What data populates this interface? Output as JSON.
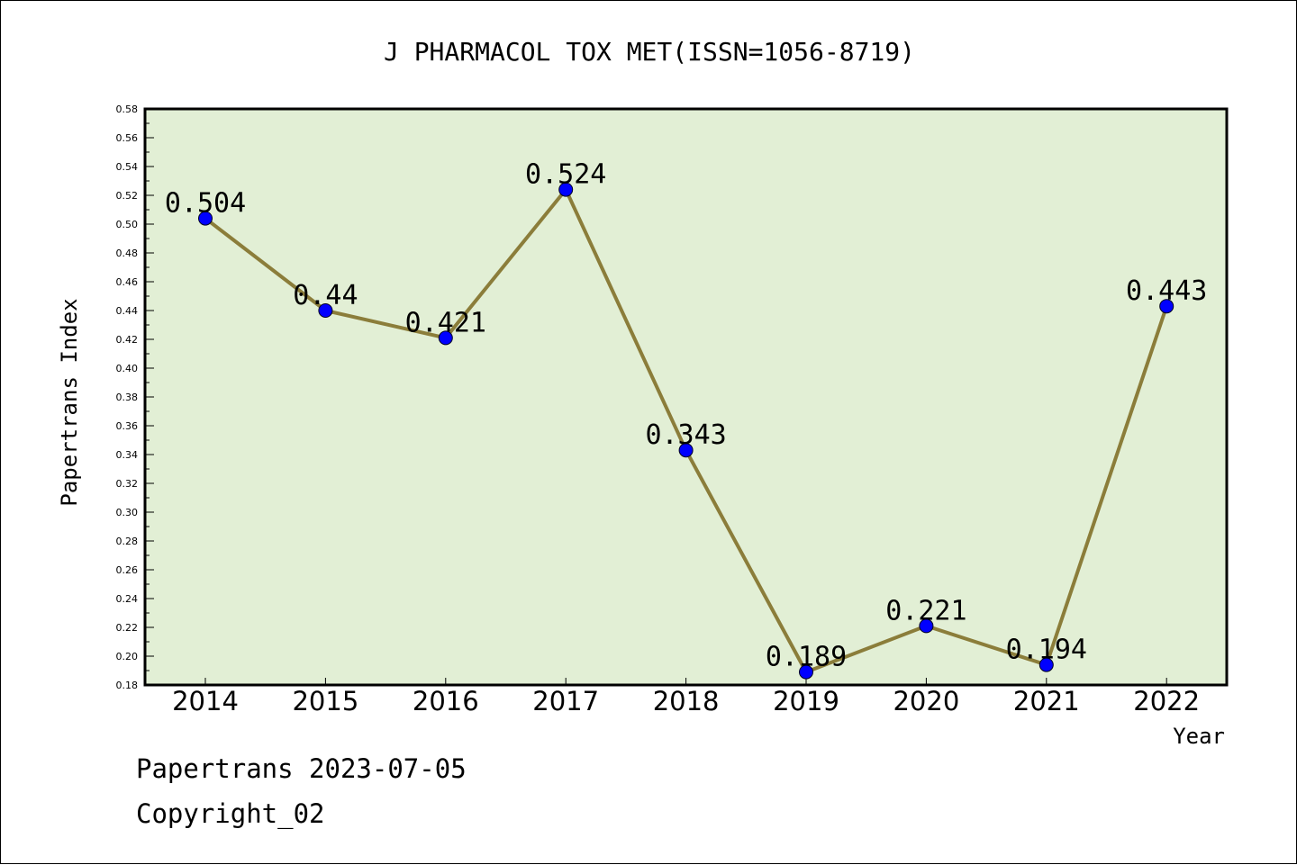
{
  "chart_data": {
    "type": "line",
    "title": "J PHARMACOL TOX MET(ISSN=1056-8719)",
    "xlabel": "Year",
    "ylabel": "Papertrans Index",
    "categories": [
      "2014",
      "2015",
      "2016",
      "2017",
      "2018",
      "2019",
      "2020",
      "2021",
      "2022"
    ],
    "values": [
      0.504,
      0.44,
      0.421,
      0.524,
      0.343,
      0.189,
      0.221,
      0.194,
      0.443
    ],
    "data_labels": [
      "0.504",
      "0.44",
      "0.421",
      "0.524",
      "0.343",
      "0.189",
      "0.221",
      "0.194",
      "0.443"
    ],
    "ylim": [
      0.18,
      0.58
    ],
    "ytick_labels": [
      "0.18",
      "0.20",
      "0.22",
      "0.24",
      "0.26",
      "0.28",
      "0.30",
      "0.32",
      "0.34",
      "0.36",
      "0.38",
      "0.40",
      "0.42",
      "0.44",
      "0.46",
      "0.48",
      "0.50",
      "0.52",
      "0.54",
      "0.56",
      "0.58"
    ],
    "grid": false,
    "colors": {
      "plot_background": "#e2efd5",
      "line": "#8b7d3a",
      "marker": "#0000ff"
    }
  },
  "footer": {
    "line1": "Papertrans 2023-07-05",
    "line2": "Copyright_02"
  }
}
